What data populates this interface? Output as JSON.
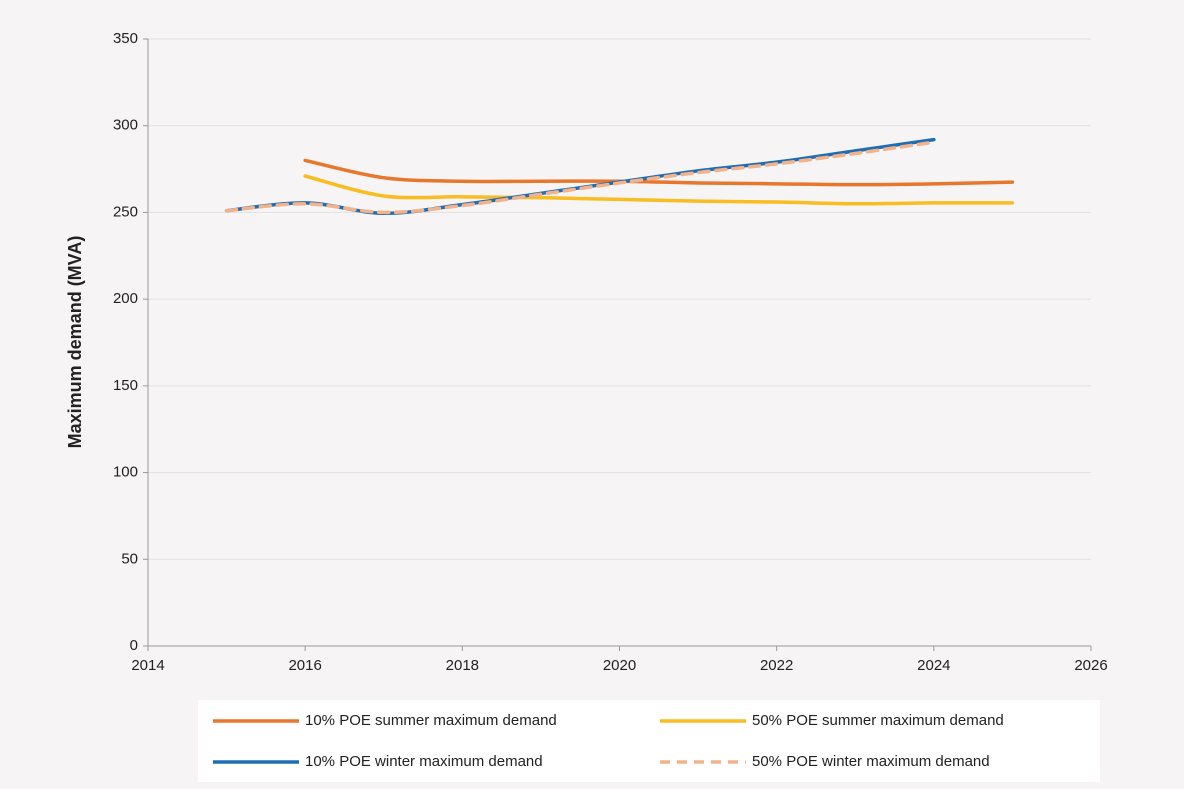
{
  "chart_data": {
    "type": "line",
    "y_label": "Maximum demand (MVA)",
    "xlim": [
      2014,
      2026
    ],
    "xticks": [
      2014,
      2016,
      2018,
      2020,
      2022,
      2024,
      2026
    ],
    "ylim": [
      0,
      350
    ],
    "yticks": [
      0,
      50,
      100,
      150,
      200,
      250,
      300,
      350
    ],
    "grid": true,
    "legend": "bottom",
    "series": [
      {
        "name": "10% POE summer maximum demand",
        "color": "#e8772e",
        "dashed": false,
        "x": [
          2016,
          2017,
          2018,
          2019,
          2020,
          2021,
          2022,
          2023,
          2024,
          2025
        ],
        "values": [
          280,
          270,
          268,
          268,
          268,
          267,
          266.5,
          266,
          266.5,
          267.5
        ]
      },
      {
        "name": "50% POE summer maximum demand",
        "color": "#f9bc22",
        "dashed": false,
        "x": [
          2016,
          2017,
          2018,
          2019,
          2020,
          2021,
          2022,
          2023,
          2024,
          2025
        ],
        "values": [
          271,
          259.5,
          259,
          258.5,
          257.5,
          256.5,
          256,
          255,
          255.5,
          255.5
        ]
      },
      {
        "name": "10% POE winter maximum demand",
        "color": "#1f6db5",
        "dashed": false,
        "x": [
          2015,
          2016,
          2017,
          2018,
          2019,
          2020,
          2021,
          2022,
          2023,
          2024
        ],
        "values": [
          251,
          255.5,
          249.5,
          254.5,
          261,
          267.5,
          274,
          279,
          285.5,
          292
        ]
      },
      {
        "name": "50% POE winter maximum demand",
        "color": "#f2b28a",
        "dashed": true,
        "x": [
          2015,
          2016,
          2017,
          2018,
          2019,
          2020,
          2021,
          2022,
          2023,
          2024
        ],
        "values": [
          251,
          255,
          250,
          254,
          260.5,
          267,
          273,
          278,
          284,
          290.5
        ]
      }
    ]
  }
}
